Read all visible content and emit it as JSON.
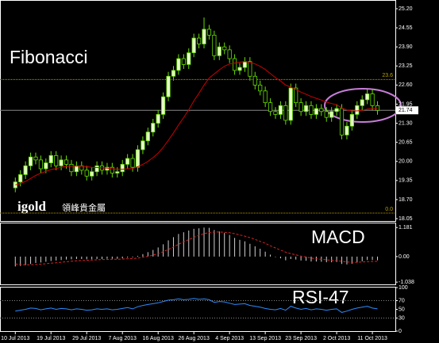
{
  "chart_data": [
    {
      "type": "candlestick",
      "title": "Fibonacci",
      "watermark": "igold",
      "watermark_cn": "領峰貴金屬",
      "xlim": [
        -3,
        74.5
      ],
      "ylim": [
        17.97,
        25.47
      ],
      "yticks": [
        {
          "value": 25.2,
          "label": "25.20"
        },
        {
          "value": 24.55,
          "label": "24.55"
        },
        {
          "value": 23.9,
          "label": "23.90"
        },
        {
          "value": 23.25,
          "label": "23.25"
        },
        {
          "value": 22.6,
          "label": "22.60"
        },
        {
          "value": 21.95,
          "label": "21.95"
        },
        {
          "value": 21.3,
          "label": "21.30"
        },
        {
          "value": 20.65,
          "label": "20.65"
        },
        {
          "value": 20.0,
          "label": "20.00"
        },
        {
          "value": 19.35,
          "label": "19.35"
        },
        {
          "value": 18.7,
          "label": "18.70"
        },
        {
          "value": 18.05,
          "label": "18.05"
        }
      ],
      "up_color": "#e4ffc8",
      "down_color": "#000000",
      "outline_color": "#66dd00",
      "open": [
        19.1,
        19.3,
        19.55,
        19.85,
        20.15,
        20.05,
        19.75,
        19.95,
        20.2,
        19.85,
        20.05,
        19.9,
        19.65,
        19.85,
        19.7,
        19.5,
        19.65,
        19.85,
        19.7,
        19.8,
        19.6,
        19.65,
        19.9,
        20.1,
        19.8,
        20.4,
        20.7,
        21.0,
        21.3,
        21.6,
        22.2,
        22.9,
        23.1,
        23.5,
        23.3,
        23.7,
        24.2,
        24.0,
        24.5,
        24.3,
        23.6,
        23.9,
        23.8,
        23.5,
        23.1,
        23.2,
        23.4,
        22.9,
        22.6,
        22.4,
        22.0,
        21.7,
        21.6,
        21.9,
        21.4,
        22.5,
        22.0,
        21.7,
        21.9,
        21.6,
        21.8,
        21.7,
        21.5,
        21.7,
        21.8,
        20.9,
        21.2,
        21.6,
        21.9,
        22.1,
        22.3,
        21.9
      ],
      "high": [
        19.45,
        19.7,
        20.0,
        20.3,
        20.3,
        20.2,
        20.1,
        20.35,
        20.35,
        20.2,
        20.2,
        20.05,
        20.0,
        20.0,
        19.85,
        19.8,
        20.0,
        20.0,
        19.95,
        19.95,
        19.8,
        20.05,
        20.25,
        20.25,
        20.55,
        20.85,
        21.15,
        21.45,
        21.75,
        22.35,
        23.05,
        23.25,
        23.65,
        23.65,
        23.85,
        24.35,
        24.35,
        24.9,
        24.65,
        24.45,
        24.05,
        24.05,
        23.95,
        23.65,
        23.35,
        23.55,
        23.55,
        23.05,
        22.75,
        22.55,
        22.15,
        21.85,
        22.05,
        22.05,
        22.65,
        22.65,
        22.15,
        22.05,
        22.05,
        21.95,
        21.95,
        21.85,
        21.85,
        21.95,
        21.95,
        21.35,
        21.75,
        22.05,
        22.25,
        22.45,
        22.45,
        22.05
      ],
      "low": [
        18.95,
        19.15,
        19.4,
        19.7,
        19.9,
        19.6,
        19.6,
        19.8,
        19.7,
        19.7,
        19.75,
        19.5,
        19.5,
        19.55,
        19.35,
        19.35,
        19.5,
        19.55,
        19.55,
        19.45,
        19.45,
        19.5,
        19.75,
        19.65,
        19.65,
        20.25,
        20.55,
        20.85,
        21.15,
        21.45,
        22.05,
        22.75,
        22.95,
        23.15,
        23.15,
        23.55,
        23.85,
        23.85,
        24.15,
        23.45,
        23.45,
        23.65,
        23.35,
        22.95,
        22.95,
        23.05,
        22.75,
        22.45,
        22.25,
        21.85,
        21.55,
        21.45,
        21.45,
        21.25,
        21.25,
        21.85,
        21.55,
        21.55,
        21.45,
        21.45,
        21.55,
        21.35,
        21.35,
        21.55,
        20.75,
        20.75,
        21.05,
        21.45,
        21.75,
        21.95,
        21.75,
        21.59
      ],
      "close": [
        19.3,
        19.55,
        19.85,
        20.15,
        20.05,
        19.75,
        19.95,
        20.2,
        19.85,
        20.05,
        19.9,
        19.65,
        19.85,
        19.7,
        19.5,
        19.65,
        19.85,
        19.7,
        19.8,
        19.6,
        19.65,
        19.9,
        20.1,
        19.8,
        20.4,
        20.7,
        21.0,
        21.3,
        21.6,
        22.2,
        22.9,
        23.1,
        23.5,
        23.3,
        23.7,
        24.2,
        24.0,
        24.5,
        24.3,
        23.6,
        23.9,
        23.8,
        23.5,
        23.1,
        23.2,
        23.4,
        22.9,
        22.6,
        22.4,
        22.0,
        21.7,
        21.6,
        21.9,
        21.4,
        22.5,
        22.0,
        21.7,
        21.9,
        21.6,
        21.8,
        21.7,
        21.5,
        21.7,
        21.8,
        20.9,
        21.2,
        21.6,
        21.9,
        22.1,
        22.3,
        21.9,
        21.74
      ],
      "ma": {
        "color": "#cc0000",
        "values": [
          19.2,
          19.25,
          19.32,
          19.42,
          19.52,
          19.6,
          19.66,
          19.72,
          19.76,
          19.8,
          19.83,
          19.84,
          19.84,
          19.84,
          19.82,
          19.8,
          19.79,
          19.78,
          19.77,
          19.75,
          19.73,
          19.73,
          19.75,
          19.76,
          19.82,
          19.9,
          20.0,
          20.13,
          20.28,
          20.48,
          20.72,
          20.97,
          21.24,
          21.49,
          21.76,
          22.06,
          22.32,
          22.6,
          22.84,
          22.98,
          23.12,
          23.24,
          23.32,
          23.35,
          23.38,
          23.4,
          23.37,
          23.32,
          23.24,
          23.13,
          22.99,
          22.85,
          22.74,
          22.6,
          22.53,
          22.45,
          22.36,
          22.29,
          22.21,
          22.15,
          22.09,
          22.02,
          21.97,
          21.93,
          21.82,
          21.75,
          21.72,
          21.72,
          21.74,
          21.78,
          21.8,
          21.8
        ]
      },
      "levels": [
        {
          "value": 22.79,
          "label": "23.6"
        },
        {
          "value": 18.24,
          "label": "0.0"
        }
      ],
      "level_color": "#b8a000",
      "last_price": 21.74
    },
    {
      "type": "macd",
      "title": "MACD",
      "xlim": [
        -3,
        74.5
      ],
      "ylim": [
        -1.13,
        1.35
      ],
      "yticks": [
        1.181,
        {
          "value": 0,
          "label": "0.00"
        },
        -1.038
      ],
      "histogram": {
        "color": "#d0d0d0",
        "values": [
          -0.4,
          -0.38,
          -0.35,
          -0.3,
          -0.26,
          -0.24,
          -0.21,
          -0.18,
          -0.16,
          -0.14,
          -0.12,
          -0.11,
          -0.1,
          -0.1,
          -0.11,
          -0.11,
          -0.1,
          -0.1,
          -0.09,
          -0.09,
          -0.09,
          -0.07,
          -0.04,
          -0.03,
          0.03,
          0.1,
          0.18,
          0.27,
          0.37,
          0.5,
          0.66,
          0.79,
          0.92,
          0.99,
          1.06,
          1.13,
          1.15,
          1.18,
          1.17,
          1.08,
          1.02,
          0.96,
          0.88,
          0.76,
          0.68,
          0.62,
          0.52,
          0.42,
          0.32,
          0.2,
          0.08,
          -0.02,
          -0.07,
          -0.15,
          -0.1,
          -0.12,
          -0.16,
          -0.17,
          -0.2,
          -0.2,
          -0.21,
          -0.23,
          -0.23,
          -0.22,
          -0.3,
          -0.32,
          -0.29,
          -0.24,
          -0.19,
          -0.14,
          -0.14,
          -0.15
        ]
      },
      "signal": {
        "color": "#dd2222",
        "values": [
          -0.3,
          -0.32,
          -0.33,
          -0.33,
          -0.32,
          -0.31,
          -0.29,
          -0.27,
          -0.25,
          -0.23,
          -0.21,
          -0.19,
          -0.17,
          -0.16,
          -0.15,
          -0.14,
          -0.13,
          -0.12,
          -0.12,
          -0.11,
          -0.11,
          -0.1,
          -0.09,
          -0.08,
          -0.06,
          -0.03,
          0.01,
          0.06,
          0.12,
          0.2,
          0.29,
          0.39,
          0.5,
          0.6,
          0.69,
          0.78,
          0.86,
          0.93,
          0.98,
          1.0,
          1.0,
          0.99,
          0.97,
          0.93,
          0.88,
          0.83,
          0.77,
          0.7,
          0.62,
          0.54,
          0.44,
          0.35,
          0.26,
          0.18,
          0.12,
          0.07,
          0.02,
          -0.02,
          -0.06,
          -0.09,
          -0.11,
          -0.13,
          -0.15,
          -0.17,
          -0.19,
          -0.22,
          -0.23,
          -0.23,
          -0.22,
          -0.21,
          -0.2,
          -0.19
        ]
      }
    },
    {
      "type": "line",
      "title": "RSI-47",
      "xlim": [
        -3,
        74.5
      ],
      "ylim": [
        0,
        100
      ],
      "yticks": [
        100,
        70,
        50,
        30,
        0
      ],
      "level_lines": [
        70,
        30
      ],
      "xticks": [
        {
          "value": 0,
          "label": "10 Jul 2013"
        },
        {
          "value": 7,
          "label": "19 Jul 2013"
        },
        {
          "value": 14,
          "label": "29 Jul 2013"
        },
        {
          "value": 21,
          "label": "7 Aug 2013"
        },
        {
          "value": 28,
          "label": "16 Aug 2013"
        },
        {
          "value": 35,
          "label": "26 Aug 2013"
        },
        {
          "value": 42,
          "label": "4 Sep 2013"
        },
        {
          "value": 49,
          "label": "13 Sep 2013"
        },
        {
          "value": 56,
          "label": "23 Sep 2013"
        },
        {
          "value": 63,
          "label": "2 Oct 2013"
        },
        {
          "value": 70,
          "label": "11 Oct 2013"
        }
      ],
      "color": "#2b8cff",
      "values": [
        46,
        48,
        50,
        53,
        52,
        49,
        51,
        53,
        50,
        52,
        51,
        49,
        51,
        50,
        48,
        49,
        51,
        50,
        51,
        49,
        50,
        52,
        54,
        51,
        56,
        59,
        61,
        63,
        65,
        68,
        71,
        72,
        74,
        72,
        73,
        75,
        73,
        74,
        72,
        66,
        68,
        67,
        64,
        61,
        62,
        63,
        59,
        57,
        55,
        52,
        50,
        49,
        52,
        48,
        57,
        53,
        50,
        52,
        49,
        51,
        50,
        48,
        50,
        51,
        43,
        46,
        50,
        53,
        55,
        57,
        53,
        51
      ]
    }
  ]
}
